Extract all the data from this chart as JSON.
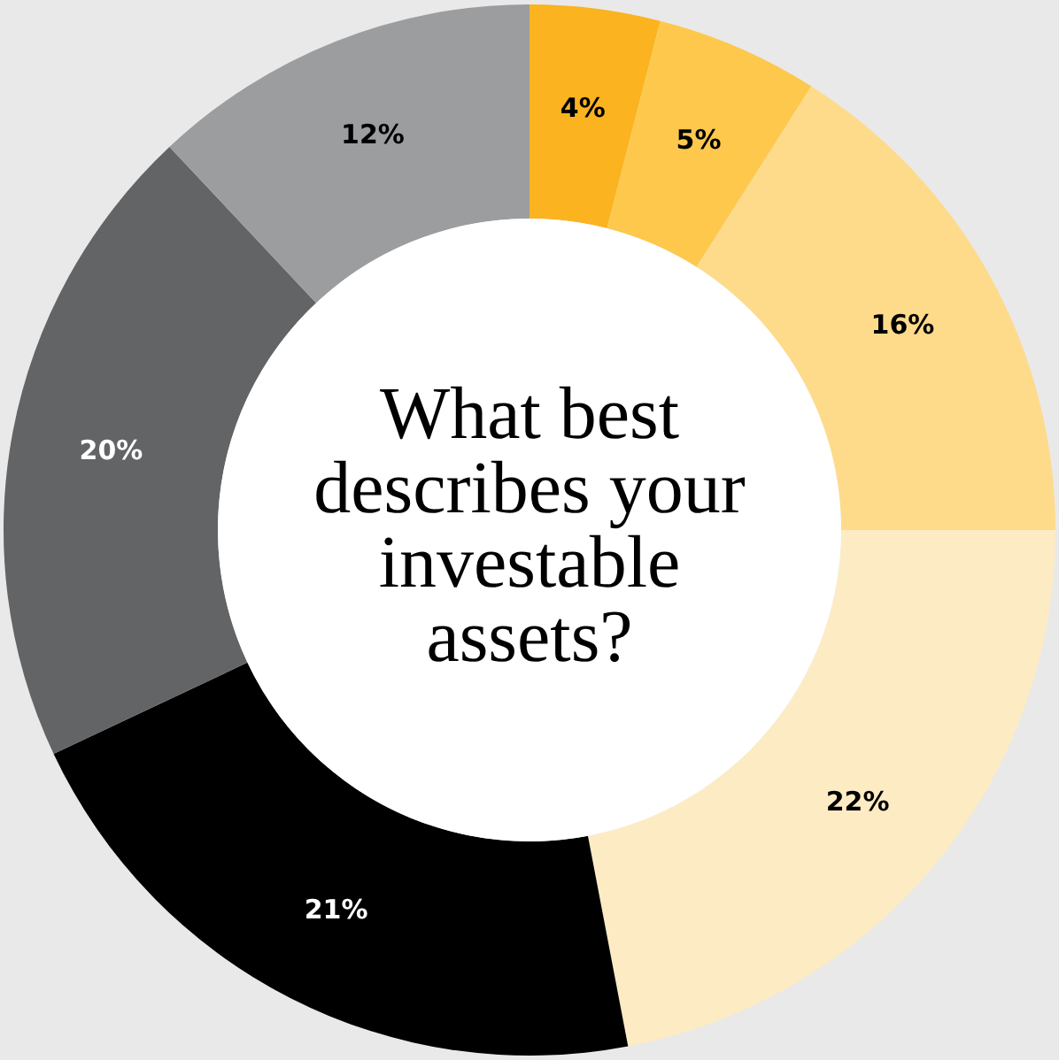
{
  "chart_data": {
    "type": "donut",
    "title": "What best describes your investable assets?",
    "categories": [
      null,
      null,
      null,
      null,
      null,
      null,
      null
    ],
    "values": [
      4,
      5,
      16,
      22,
      21,
      20,
      12
    ],
    "value_labels": [
      "4%",
      "5%",
      "16%",
      "22%",
      "21%",
      "20%",
      "12%"
    ],
    "colors": [
      "#fbb31f",
      "#fec84d",
      "#fedb8b",
      "#fdebc4",
      "#000000",
      "#636466",
      "#9c9d9f"
    ]
  }
}
